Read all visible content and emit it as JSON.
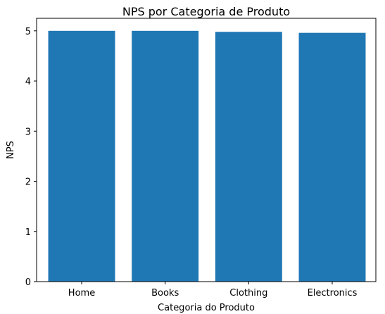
{
  "chart_data": {
    "type": "bar",
    "title": "NPS por Categoria de Produto",
    "xlabel": "Categoria do Produto",
    "ylabel": "NPS",
    "categories": [
      "Home",
      "Books",
      "Clothing",
      "Electronics"
    ],
    "values": [
      5.0,
      5.0,
      4.98,
      4.96
    ],
    "ylim": [
      0,
      5.25
    ],
    "yticks": [
      0,
      1,
      2,
      3,
      4,
      5
    ],
    "bar_color": "#1f77b4",
    "grid": false,
    "legend": "none"
  }
}
